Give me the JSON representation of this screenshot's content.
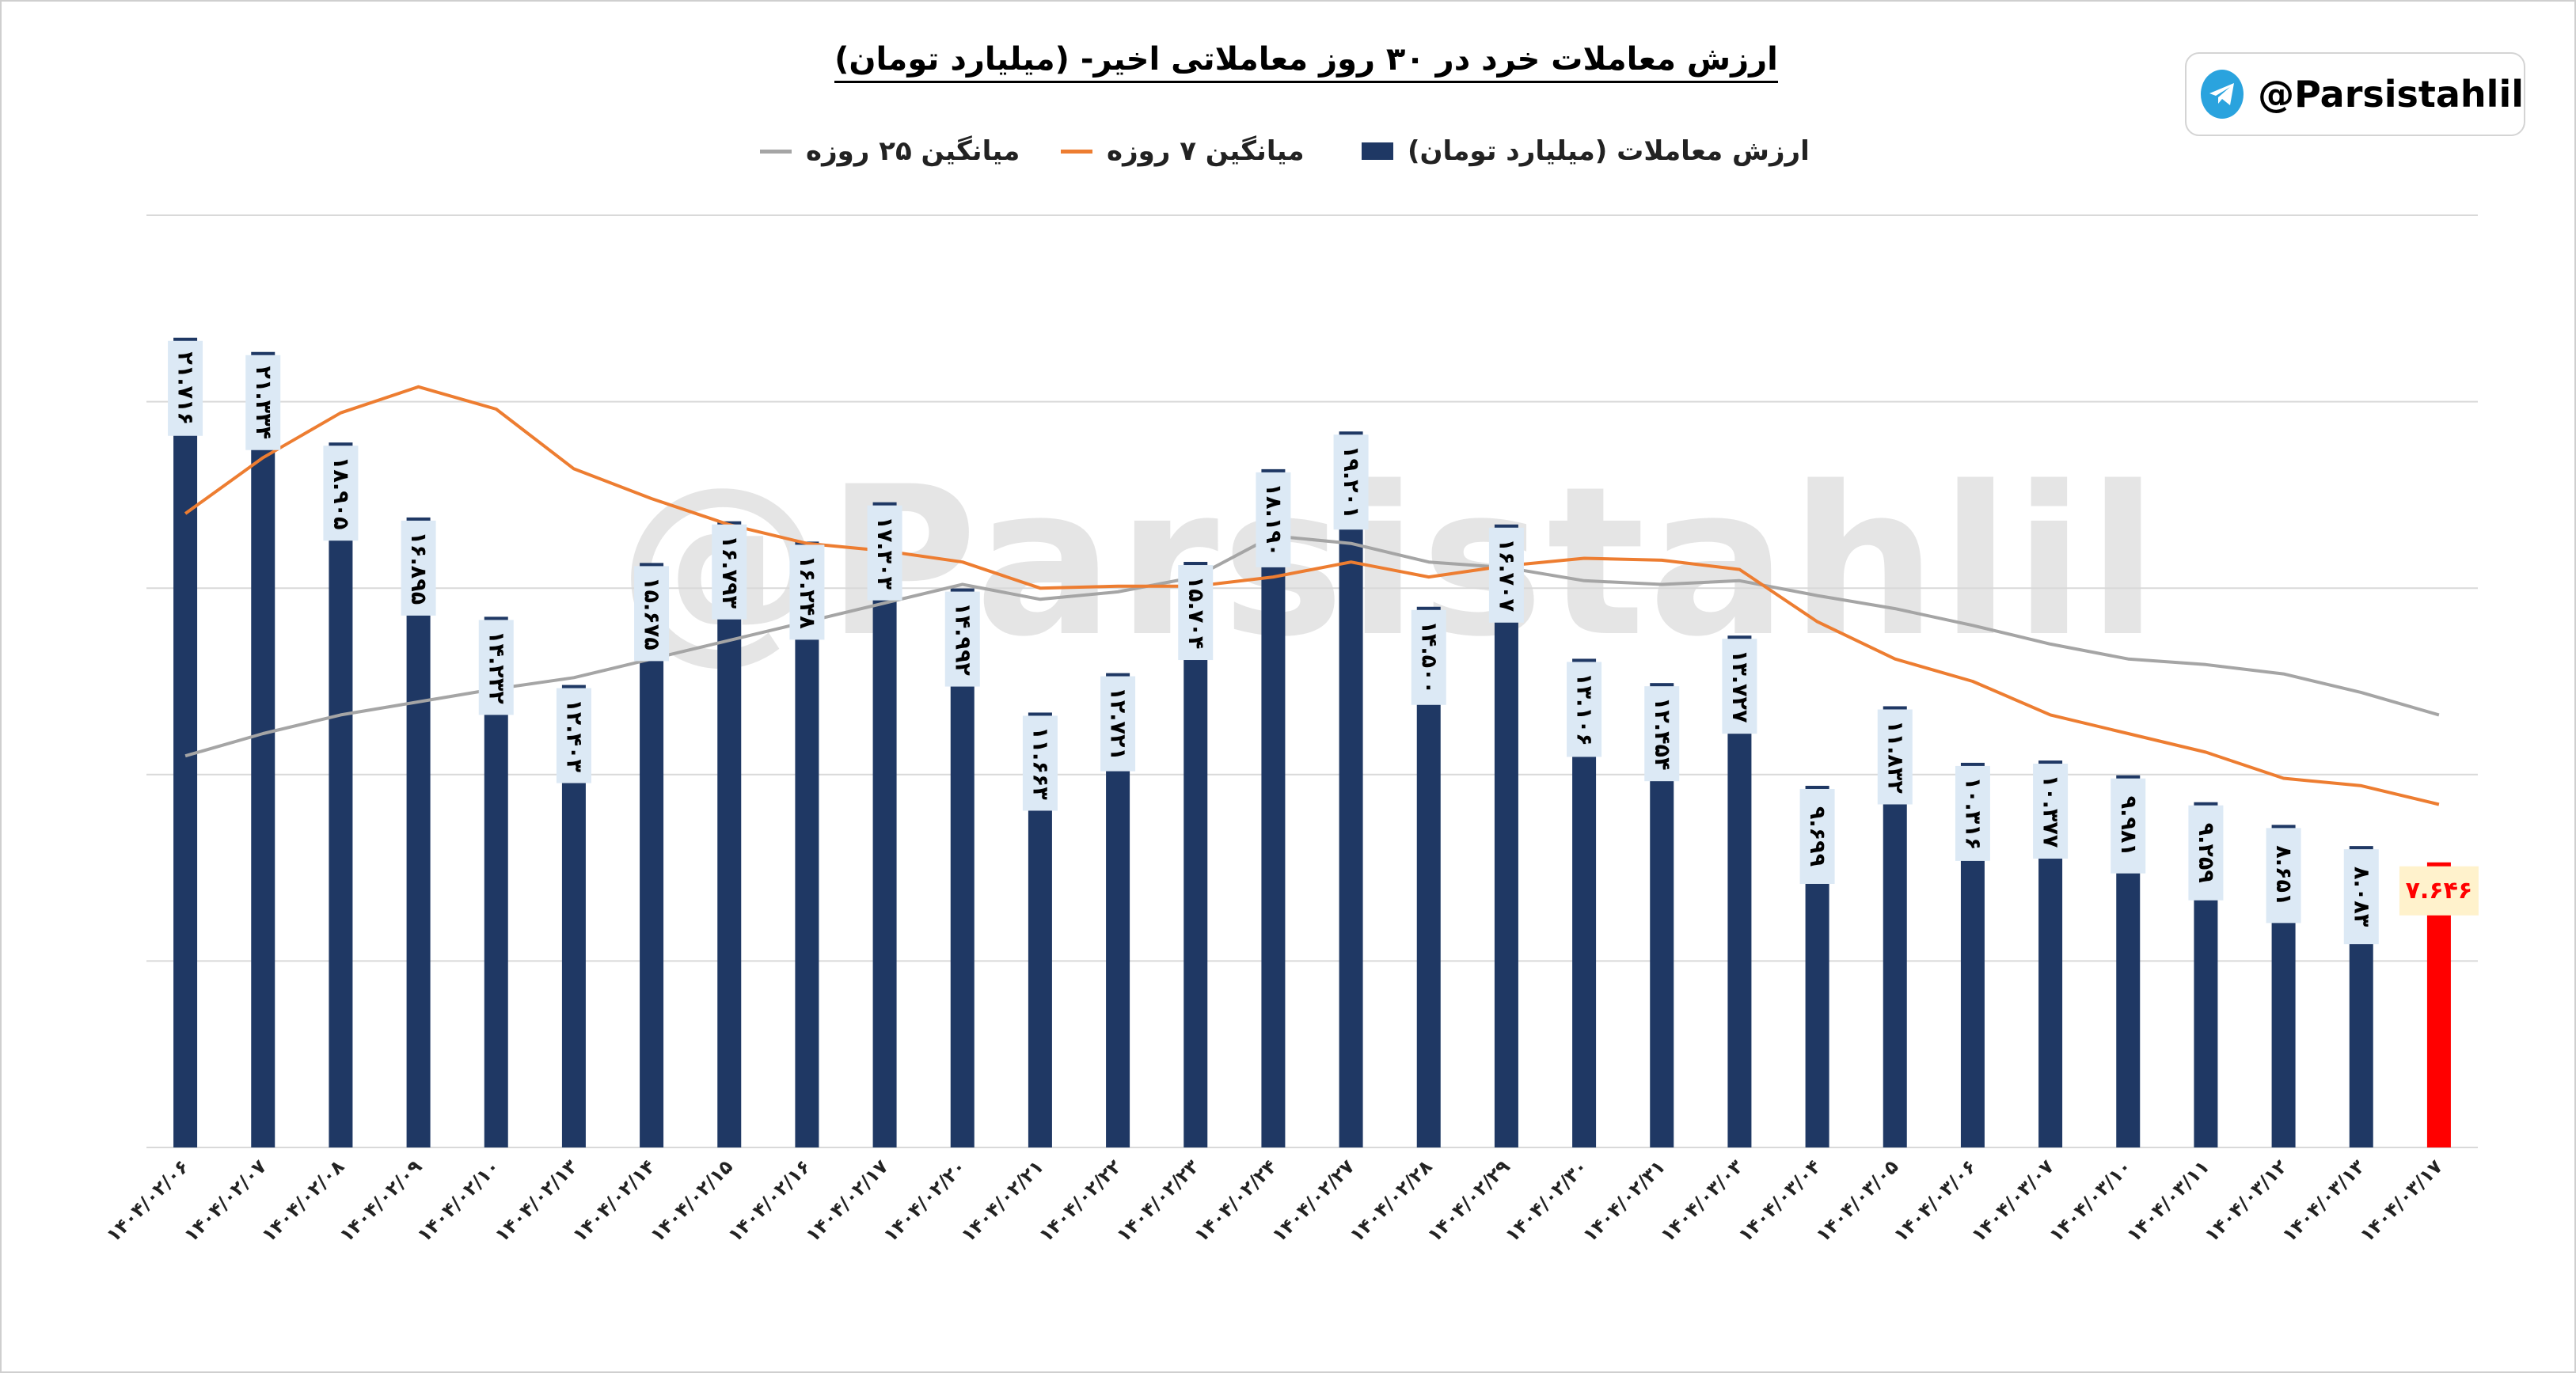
{
  "title": "ارزش معاملات خرد در ۳۰ روز معاملاتی اخیر- (میلیارد تومان)",
  "badge": {
    "handle": "@Parsistahlil",
    "icon": "telegram-icon"
  },
  "watermark": "@Parsistahlil",
  "colors": {
    "bar": "#1f3864",
    "last_bar": "#ff0000",
    "ma7": "#ed7d31",
    "ma25": "#a5a5a5",
    "label_bg": "#dce9f5",
    "last_label_bg": "#fff2cc",
    "last_label_text": "#ff0000",
    "grid": "#d9d9d9"
  },
  "chart_data": {
    "type": "bar",
    "ylim": [
      0,
      25
    ],
    "grid": true,
    "categories": [
      "۱۴۰۴/۰۲/۰۶",
      "۱۴۰۴/۰۲/۰۷",
      "۱۴۰۴/۰۲/۰۸",
      "۱۴۰۴/۰۲/۰۹",
      "۱۴۰۴/۰۲/۱۰",
      "۱۴۰۴/۰۲/۱۳",
      "۱۴۰۴/۰۲/۱۴",
      "۱۴۰۴/۰۲/۱۵",
      "۱۴۰۴/۰۲/۱۶",
      "۱۴۰۴/۰۲/۱۷",
      "۱۴۰۴/۰۲/۲۰",
      "۱۴۰۴/۰۲/۲۱",
      "۱۴۰۴/۰۲/۲۲",
      "۱۴۰۴/۰۲/۲۳",
      "۱۴۰۴/۰۲/۲۴",
      "۱۴۰۴/۰۲/۲۷",
      "۱۴۰۴/۰۲/۲۸",
      "۱۴۰۴/۰۲/۲۹",
      "۱۴۰۴/۰۲/۳۰",
      "۱۴۰۴/۰۲/۳۱",
      "۱۴۰۴/۰۳/۰۳",
      "۱۴۰۴/۰۳/۰۴",
      "۱۴۰۴/۰۳/۰۵",
      "۱۴۰۴/۰۳/۰۶",
      "۱۴۰۴/۰۳/۰۷",
      "۱۴۰۴/۰۳/۱۰",
      "۱۴۰۴/۰۳/۱۱",
      "۱۴۰۴/۰۳/۱۲",
      "۱۴۰۴/۰۳/۱۳",
      "۱۴۰۴/۰۳/۱۷"
    ],
    "series": [
      {
        "name": "ارزش معاملات (میلیارد تومان)",
        "kind": "bar",
        "values": [
          21.716,
          21.334,
          18.905,
          16.895,
          14.232,
          12.403,
          15.675,
          16.793,
          16.248,
          17.303,
          14.992,
          11.663,
          12.721,
          15.704,
          18.19,
          19.201,
          14.5,
          16.707,
          13.106,
          12.454,
          13.727,
          9.699,
          11.832,
          10.316,
          10.377,
          9.981,
          9.259,
          8.651,
          8.083,
          7.646
        ],
        "labels": [
          "۲۱.۷۱۶",
          "۲۱.۳۳۴",
          "۱۸.۹۰۵",
          "۱۶.۸۹۵",
          "۱۴.۲۳۲",
          "۱۲.۴۰۳",
          "۱۵.۶۷۵",
          "۱۶.۷۹۳",
          "۱۶.۲۴۸",
          "۱۷.۳۰۳",
          "۱۴.۹۹۲",
          "۱۱.۶۶۳",
          "۱۲.۷۲۱",
          "۱۵.۷۰۴",
          "۱۸.۱۹۰",
          "۱۹.۲۰۱",
          "۱۴.۵۰۰",
          "۱۶.۷۰۷",
          "۱۳.۱۰۶",
          "۱۲.۴۵۴",
          "۱۳.۷۲۷",
          "۹.۶۹۹",
          "۱۱.۸۳۲",
          "۱۰.۳۱۶",
          "۱۰.۳۷۷",
          "۹.۹۸۱",
          "۹.۲۵۹",
          "۸.۶۵۱",
          "۸.۰۸۳",
          "۷.۶۴۶"
        ]
      },
      {
        "name": "میانگین ۷ روزه",
        "kind": "line",
        "values": [
          17.0,
          18.5,
          19.7,
          20.4,
          19.8,
          18.2,
          17.4,
          16.7,
          16.2,
          16.0,
          15.7,
          15.0,
          15.05,
          15.05,
          15.3,
          15.7,
          15.3,
          15.6,
          15.8,
          15.75,
          15.5,
          14.1,
          13.1,
          12.5,
          11.6,
          11.1,
          10.6,
          9.9,
          9.7,
          9.2
        ]
      },
      {
        "name": "میانگین ۲۵ روزه",
        "kind": "line",
        "values": [
          10.5,
          11.1,
          11.6,
          11.95,
          12.3,
          12.6,
          13.1,
          13.6,
          14.1,
          14.6,
          15.1,
          14.7,
          14.9,
          15.3,
          16.4,
          16.2,
          15.7,
          15.55,
          15.2,
          15.1,
          15.2,
          14.8,
          14.45,
          14.0,
          13.5,
          13.1,
          12.95,
          12.7,
          12.2,
          11.6
        ]
      }
    ]
  }
}
